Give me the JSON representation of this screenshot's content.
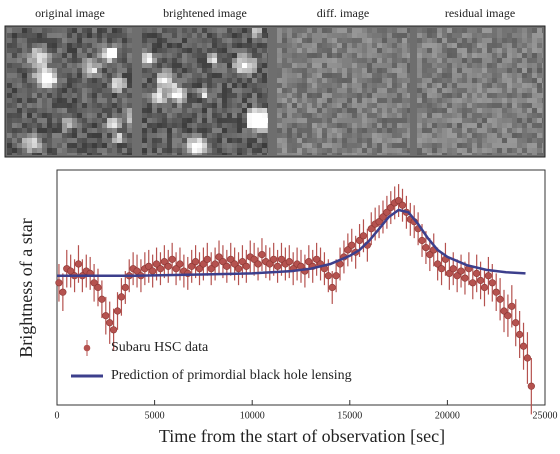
{
  "image_labels": [
    "original image",
    "brightened image",
    "diff. image",
    "residual image"
  ],
  "chart_data": {
    "type": "scatter",
    "xlabel": "Time from the start of observation [sec]",
    "ylabel": "Brightness of a star",
    "xlim": [
      0,
      25000
    ],
    "xticks": [
      0,
      5000,
      10000,
      15000,
      20000,
      25000
    ],
    "ylim": [
      0,
      100
    ],
    "legend": "lower-left",
    "series": [
      {
        "name": "Subaru HSC data",
        "type": "errorbar",
        "color": "#b5524f",
        "x": [
          100,
          300,
          500,
          700,
          900,
          1100,
          1300,
          1500,
          1700,
          1900,
          2100,
          2300,
          2500,
          2700,
          2900,
          3100,
          3300,
          3500,
          3700,
          3900,
          4100,
          4300,
          4500,
          4700,
          4900,
          5100,
          5300,
          5500,
          5700,
          5900,
          6100,
          6300,
          6500,
          6700,
          6900,
          7100,
          7300,
          7500,
          7700,
          7900,
          8100,
          8300,
          8500,
          8700,
          8900,
          9100,
          9300,
          9500,
          9700,
          9900,
          10100,
          10300,
          10500,
          10700,
          10900,
          11100,
          11300,
          11500,
          11700,
          11900,
          12100,
          12300,
          12500,
          12700,
          12900,
          13100,
          13300,
          13500,
          13700,
          13900,
          14100,
          14300,
          14500,
          14700,
          14900,
          15100,
          15300,
          15500,
          15700,
          15900,
          16100,
          16300,
          16500,
          16700,
          16900,
          17100,
          17300,
          17500,
          17700,
          17900,
          18100,
          18300,
          18500,
          18700,
          18900,
          19100,
          19300,
          19500,
          19700,
          19900,
          20100,
          20300,
          20500,
          20700,
          20900,
          21100,
          21300,
          21500,
          21700,
          21900,
          22100,
          22300,
          22500,
          22700,
          22900,
          23100,
          23300,
          23500,
          23700,
          23900,
          24100,
          24300
        ],
        "values": [
          52,
          48,
          58,
          57,
          55,
          60,
          55,
          57,
          56,
          52,
          50,
          45,
          38,
          35,
          32,
          40,
          46,
          50,
          55,
          58,
          57,
          55,
          58,
          59,
          57,
          60,
          58,
          61,
          59,
          62,
          58,
          60,
          57,
          56,
          59,
          61,
          58,
          60,
          62,
          58,
          60,
          63,
          61,
          59,
          62,
          60,
          58,
          61,
          59,
          63,
          62,
          60,
          64,
          61,
          60,
          62,
          59,
          62,
          60,
          61,
          58,
          60,
          59,
          57,
          61,
          59,
          62,
          60,
          58,
          55,
          50,
          55,
          60,
          63,
          66,
          68,
          65,
          70,
          72,
          68,
          75,
          77,
          78,
          80,
          82,
          84,
          86,
          87,
          85,
          82,
          79,
          78,
          75,
          70,
          67,
          64,
          66,
          60,
          58,
          62,
          56,
          58,
          55,
          57,
          54,
          58,
          52,
          56,
          53,
          50,
          55,
          52,
          48,
          45,
          40,
          38,
          42,
          35,
          30,
          25,
          20,
          8
        ],
        "errors": [
          8,
          8,
          8,
          7,
          7,
          8,
          7,
          7,
          7,
          8,
          8,
          8,
          8,
          9,
          9,
          8,
          8,
          7,
          7,
          7,
          7,
          7,
          7,
          7,
          7,
          7,
          7,
          7,
          7,
          7,
          7,
          7,
          7,
          7,
          7,
          7,
          7,
          7,
          7,
          7,
          7,
          7,
          7,
          7,
          7,
          7,
          7,
          7,
          7,
          7,
          7,
          7,
          7,
          7,
          7,
          7,
          7,
          7,
          7,
          7,
          7,
          7,
          7,
          7,
          7,
          7,
          7,
          7,
          7,
          7,
          7,
          7,
          7,
          7,
          7,
          7,
          7,
          7,
          7,
          7,
          7,
          7,
          7,
          7,
          7,
          7,
          7,
          7,
          7,
          7,
          7,
          7,
          7,
          7,
          7,
          7,
          7,
          7,
          7,
          7,
          7,
          7,
          7,
          7,
          7,
          7,
          7,
          8,
          8,
          8,
          8,
          8,
          8,
          9,
          9,
          9,
          9,
          10,
          10,
          10,
          11,
          12
        ]
      },
      {
        "name": "Prediction of primordial black hole lensing",
        "type": "line",
        "color": "#3c3f8c",
        "x": [
          0,
          2000,
          4000,
          6000,
          8000,
          10000,
          12000,
          13000,
          14000,
          15000,
          15500,
          16000,
          16500,
          17000,
          17500,
          18000,
          18500,
          19000,
          19500,
          20000,
          21000,
          22000,
          23000,
          24000
        ],
        "values": [
          55,
          55,
          55,
          55.3,
          55.6,
          56,
          57,
          58,
          60,
          63.5,
          66,
          70,
          75,
          80,
          83,
          82,
          77,
          71,
          66,
          63,
          59.5,
          57.5,
          56.5,
          56
        ]
      }
    ]
  }
}
